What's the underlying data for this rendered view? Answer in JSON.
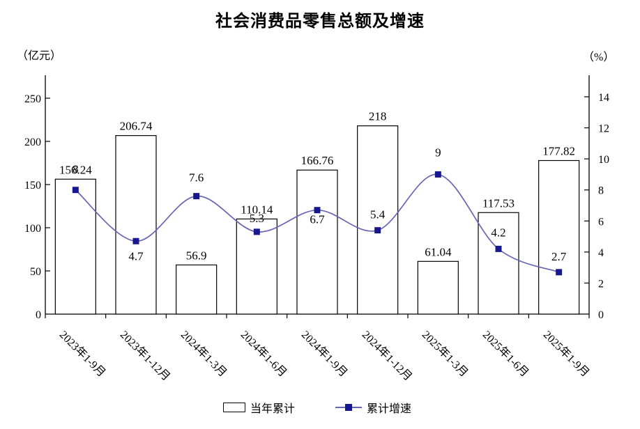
{
  "title": "社会消费品零售总额及增速",
  "left_axis_unit": "（亿元）",
  "right_axis_unit": "（%）",
  "legend": {
    "bar_label": "当年累计",
    "line_label": "累计增速"
  },
  "colors": {
    "line": "#6666B2",
    "marker": "#17178F",
    "bar_fill": "#FFFFFF",
    "bar_border": "#000000",
    "axis": "#000000",
    "text": "#000000"
  },
  "chart_data": {
    "type": "bar+line",
    "categories": [
      "2023年1-9月",
      "2023年1-12月",
      "2024年1-3月",
      "2024年1-6月",
      "2024年1-9月",
      "2024年1-12月",
      "2025年1-3月",
      "2025年1-6月",
      "2025年1-9月"
    ],
    "series": [
      {
        "name": "当年累计",
        "type": "bar",
        "axis": "left",
        "values": [
          156.24,
          206.74,
          56.9,
          110.14,
          166.76,
          218,
          61.04,
          117.53,
          177.82
        ],
        "labels": [
          "156.24",
          "206.74",
          "56.9",
          "110.14",
          "166.76",
          "218",
          "61.04",
          "117.53",
          "177.82"
        ]
      },
      {
        "name": "累计增速",
        "type": "line",
        "axis": "right",
        "values": [
          8,
          4.7,
          7.6,
          5.3,
          6.7,
          5.4,
          9,
          4.2,
          2.7
        ],
        "labels": [
          "8",
          "4.7",
          "7.6",
          "5.3",
          "6.7",
          "5.4",
          "9",
          "4.2",
          "2.7"
        ],
        "label_positions": [
          "above",
          "below",
          "above",
          "above",
          "below",
          "above",
          "above",
          "above",
          "above"
        ],
        "label_offsets": [
          -24,
          27,
          -21,
          -14,
          19,
          -17,
          -26,
          -18,
          -17
        ]
      }
    ],
    "left_axis": {
      "label": "（亿元）",
      "ticks": [
        0,
        50,
        100,
        150,
        200,
        250
      ],
      "range": [
        0,
        277
      ]
    },
    "right_axis": {
      "label": "（%）",
      "ticks": [
        0,
        2,
        4,
        6,
        8,
        10,
        12,
        14
      ],
      "range": [
        0,
        15.4
      ]
    },
    "grid": false,
    "legend_position": "bottom",
    "smooth_line": true
  }
}
